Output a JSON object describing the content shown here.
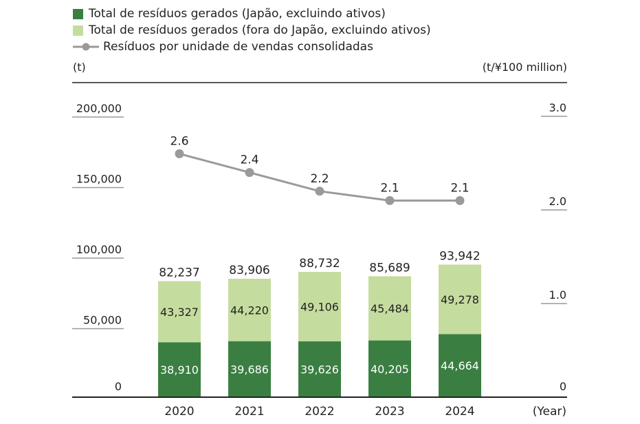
{
  "chart_data": {
    "type": "bar",
    "categories": [
      "2020",
      "2021",
      "2022",
      "2023",
      "2024"
    ],
    "series": [
      {
        "name": "Total de resíduos gerados (Japão, excluindo ativos)",
        "color": "#3a7f41",
        "values": [
          38910,
          39686,
          39626,
          40205,
          44664
        ],
        "labels": [
          "38,910",
          "39,686",
          "39,626",
          "40,205",
          "44,664"
        ]
      },
      {
        "name": "Total de resíduos gerados (fora do Japão, excluindo ativos)",
        "color": "#c5dc9f",
        "values": [
          43327,
          44220,
          49106,
          45484,
          49278
        ],
        "labels": [
          "43,327",
          "44,220",
          "49,106",
          "45,484",
          "49,278"
        ]
      },
      {
        "name": "Resíduos por unidade de vendas consolidadas",
        "type": "line",
        "axis": "right",
        "color": "#9a9a9a",
        "values": [
          2.6,
          2.4,
          2.2,
          2.1,
          2.1
        ],
        "labels": [
          "2.6",
          "2.4",
          "2.2",
          "2.1",
          "2.1"
        ]
      }
    ],
    "totals": [
      "82,237",
      "83,906",
      "88,732",
      "85,689",
      "93,942"
    ],
    "totals_values": [
      82237,
      83906,
      88732,
      85689,
      93942
    ],
    "ylabel": "(t)",
    "y2label": "(t/¥100 million)",
    "xlabel": "(Year)",
    "ylim": [
      0,
      200000
    ],
    "y2lim": [
      0,
      3.0
    ],
    "yticks": [
      {
        "v": 0,
        "t": "0"
      },
      {
        "v": 50000,
        "t": "50,000"
      },
      {
        "v": 100000,
        "t": "100,000"
      },
      {
        "v": 150000,
        "t": "150,000"
      },
      {
        "v": 200000,
        "t": "200,000"
      }
    ],
    "y2ticks": [
      {
        "v": 0,
        "t": "0"
      },
      {
        "v": 1,
        "t": "1.0"
      },
      {
        "v": 2,
        "t": "2.0"
      },
      {
        "v": 3,
        "t": "3.0"
      }
    ],
    "legend": "top-left"
  }
}
